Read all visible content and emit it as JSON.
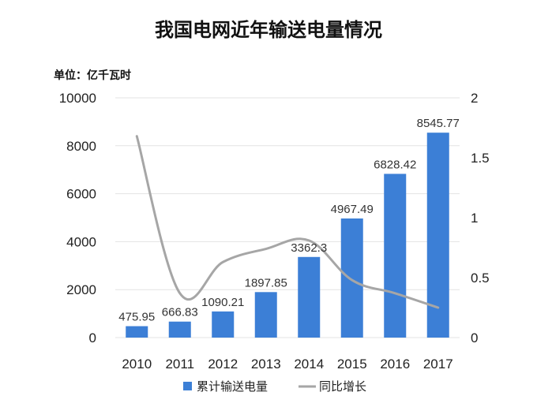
{
  "chart_data": {
    "type": "bar",
    "title": "我国电网近年输送电量情况",
    "unit_label": "单位：亿千瓦时",
    "categories": [
      "2010",
      "2011",
      "2012",
      "2013",
      "2014",
      "2015",
      "2016",
      "2017"
    ],
    "series": [
      {
        "name": "累计输送电量",
        "type": "bar",
        "axis": "left",
        "color": "#3c7fd6",
        "values": [
          475.95,
          666.83,
          1090.21,
          1897.85,
          3362.3,
          4967.49,
          6828.42,
          8545.77
        ],
        "labels": [
          "475.95",
          "666.83",
          "1090.21",
          "1897.85",
          "3362.3",
          "4967.49",
          "6828.42",
          "8545.77"
        ]
      },
      {
        "name": "同比增长",
        "type": "line",
        "axis": "right",
        "color": "#a6a6a6",
        "values": [
          1.68,
          0.37,
          0.63,
          0.74,
          0.81,
          0.48,
          0.37,
          0.25
        ]
      }
    ],
    "ylim_left": [
      0,
      10000
    ],
    "yticks_left": [
      "0",
      "2000",
      "4000",
      "6000",
      "8000",
      "10000"
    ],
    "ylim_right": [
      0,
      2
    ],
    "yticks_right": [
      "0",
      "0.5",
      "1",
      "1.5",
      "2"
    ],
    "grid": true,
    "legend_position": "bottom"
  }
}
